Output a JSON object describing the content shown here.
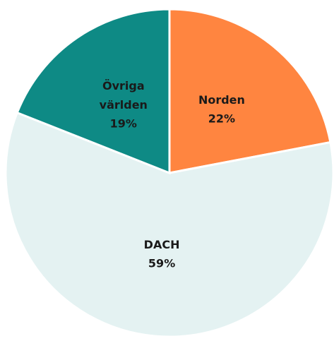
{
  "chart_data": {
    "type": "pie",
    "categories": [
      "Norden",
      "DACH",
      "Övriga världen"
    ],
    "values": [
      22,
      59,
      19
    ],
    "value_labels": [
      "22%",
      "59%",
      "19%"
    ],
    "colors": [
      "#ff8540",
      "#e4f2f2",
      "#0e8a85"
    ]
  }
}
